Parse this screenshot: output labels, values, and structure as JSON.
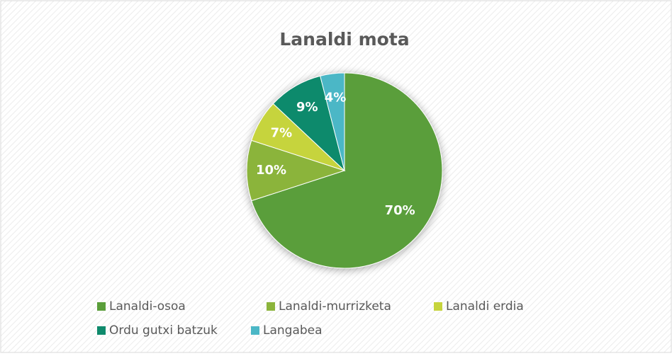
{
  "chart_data": {
    "type": "pie",
    "title": "Lanaldi mota",
    "categories": [
      "Lanaldi-osoa",
      "Lanaldi-murrizketa",
      "Lanaldi erdia",
      "Ordu gutxi batzuk",
      "Langabea"
    ],
    "values": [
      70,
      10,
      7,
      9,
      4
    ],
    "value_labels": [
      "70%",
      "10%",
      "7%",
      "9%",
      "4%"
    ],
    "colors": [
      "#5a9e3a",
      "#8bb43b",
      "#c6d43c",
      "#0f8a6c",
      "#4bb7c6"
    ],
    "legend": "bottom"
  }
}
